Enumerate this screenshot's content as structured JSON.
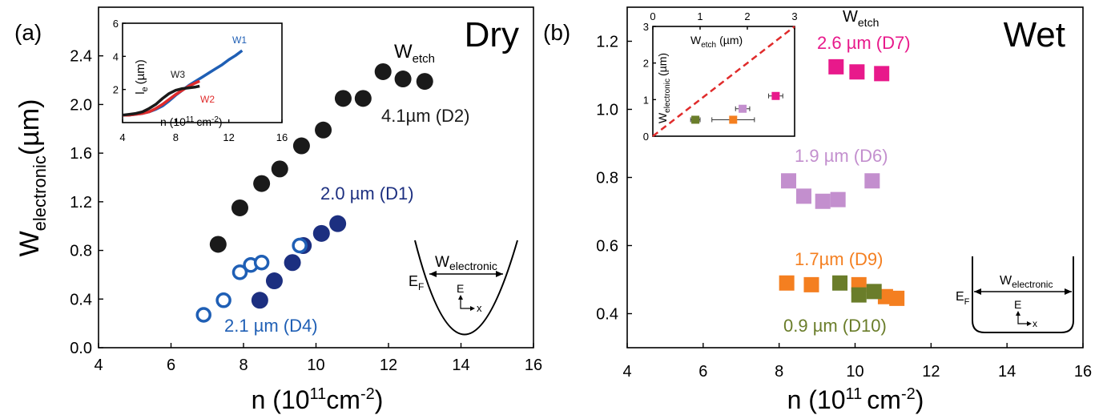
{
  "colors": {
    "black": "#1a1a1a",
    "navy": "#1c2f80",
    "blue": "#1f5fb5",
    "magenta": "#e8198b",
    "lavender": "#c38fce",
    "orange": "#f47f20",
    "olive": "#6a7d2a",
    "red": "#e02b2b"
  },
  "chart_data": [
    {
      "id": "left",
      "type": "scatter",
      "panel_label": "(a)",
      "title": "Dry",
      "xlabel_base": "n (10",
      "xlabel_sup": "11",
      "xlabel_unit": "cm",
      "xlabel_exp": "-2",
      "xlabel_close": ")",
      "ylabel_main": "W",
      "ylabel_sub": "electronic",
      "ylabel_unit": "(µm)",
      "xlim": [
        4,
        16
      ],
      "ylim": [
        0.0,
        2.8
      ],
      "xticks": [
        4,
        6,
        8,
        10,
        12,
        14,
        16
      ],
      "yticks": [
        "0.0",
        "0.4",
        "0.8",
        "1.2",
        "1.6",
        "2.0",
        "2.4"
      ],
      "wetch_label_main": "W",
      "wetch_label_sub": "etch",
      "series": [
        {
          "name": "4.1µm (D2)",
          "color": "#1a1a1a",
          "marker": "filled-circle",
          "x": [
            7.3,
            7.9,
            8.5,
            9.0,
            9.6,
            10.2,
            10.75,
            11.3,
            11.85,
            12.4,
            13.0
          ],
          "y": [
            0.85,
            1.15,
            1.35,
            1.47,
            1.66,
            1.79,
            2.05,
            2.05,
            2.27,
            2.21,
            2.19
          ]
        },
        {
          "name": "2.0 µm (D1)",
          "color": "#1c2f80",
          "marker": "filled-circle",
          "x": [
            8.45,
            8.85,
            9.35,
            9.65,
            10.15,
            10.6
          ],
          "y": [
            0.39,
            0.55,
            0.7,
            0.84,
            0.94,
            1.02
          ]
        },
        {
          "name": "2.1 µm (D4)",
          "color": "#1f5fb5",
          "marker": "open-circle",
          "x": [
            6.9,
            7.45,
            7.9,
            8.2,
            8.5,
            9.55
          ],
          "y": [
            0.27,
            0.39,
            0.62,
            0.68,
            0.7,
            0.84
          ]
        }
      ],
      "inset": {
        "ylabel_main": "l",
        "ylabel_sub": "e",
        "ylabel_unit": "(µm)",
        "xlabel": "n (10",
        "xlabel_sup": "11",
        "xlabel_unit": "cm",
        "xlabel_exp": "-2",
        "xlabel_close": ")",
        "xlim": [
          4,
          16
        ],
        "ylim": [
          0,
          6
        ],
        "xticks": [
          4,
          8,
          12,
          16
        ],
        "yticks": [
          2,
          4,
          6
        ],
        "series": [
          {
            "name": "W1",
            "color": "#1f5fb5",
            "x": [
              4,
              4.5,
              5.0,
              5.5,
              6.0,
              6.5,
              7.0,
              7.5,
              8.0,
              8.5,
              9.0,
              9.5,
              10.0,
              10.5,
              11.0,
              11.5,
              12.0,
              12.5,
              13.0
            ],
            "y": [
              0.45,
              0.45,
              0.5,
              0.55,
              0.65,
              0.8,
              1.0,
              1.3,
              1.65,
              1.95,
              2.25,
              2.5,
              2.75,
              3.0,
              3.25,
              3.5,
              3.8,
              4.05,
              4.35
            ]
          },
          {
            "name": "W2",
            "color": "#e02b2b",
            "x": [
              4,
              4.5,
              5.0,
              5.5,
              6.0,
              6.5,
              7.0,
              7.5,
              8.0,
              8.5,
              9.0,
              9.5,
              9.8
            ],
            "y": [
              0.45,
              0.45,
              0.5,
              0.55,
              0.65,
              0.85,
              1.1,
              1.4,
              1.7,
              1.95,
              2.2,
              2.4,
              2.5
            ]
          },
          {
            "name": "W3",
            "color": "#1a1a1a",
            "x": [
              4,
              4.5,
              5.0,
              5.5,
              6.0,
              6.5,
              7.0,
              7.5,
              8.0,
              8.5,
              9.0,
              9.5,
              9.8
            ],
            "y": [
              0.45,
              0.5,
              0.55,
              0.65,
              0.85,
              1.1,
              1.45,
              1.75,
              1.95,
              2.05,
              2.1,
              2.15,
              2.2
            ]
          }
        ]
      },
      "diagram": {
        "label_main": "W",
        "label_sub": "electronic",
        "ef_main": "E",
        "ef_sub": "F",
        "e": "E",
        "x": "x"
      }
    },
    {
      "id": "right",
      "type": "scatter",
      "panel_label": "(b)",
      "title": "Wet",
      "xlabel_base": "n (10",
      "xlabel_sup": "11",
      "xlabel_unit": "cm",
      "xlabel_exp": "-2",
      "xlabel_close": ")",
      "xlim": [
        4,
        16
      ],
      "ylim": [
        0.3,
        1.3
      ],
      "xticks": [
        4,
        6,
        8,
        10,
        12,
        14,
        16
      ],
      "yticks": [
        "0.4",
        "0.6",
        "0.8",
        "1.0",
        "1.2"
      ],
      "wetch_label_main": "W",
      "wetch_label_sub": "etch",
      "series": [
        {
          "name": "2.6 µm (D7)",
          "color": "#e8198b",
          "marker": "filled-square",
          "x": [
            9.5,
            10.05,
            10.7
          ],
          "y": [
            1.125,
            1.11,
            1.105
          ]
        },
        {
          "name": "1.9 µm (D6)",
          "color": "#c38fce",
          "marker": "filled-square",
          "x": [
            8.25,
            8.65,
            9.15,
            9.55,
            10.45
          ],
          "y": [
            0.79,
            0.745,
            0.73,
            0.735,
            0.79
          ]
        },
        {
          "name": "1.7µm (D9)",
          "color": "#f47f20",
          "marker": "filled-square",
          "x": [
            8.2,
            8.85,
            10.1,
            10.8,
            11.1
          ],
          "y": [
            0.49,
            0.485,
            0.485,
            0.45,
            0.445
          ]
        },
        {
          "name": "0.9 µm (D10)",
          "color": "#6a7d2a",
          "marker": "filled-square",
          "x": [
            9.6,
            10.1,
            10.5
          ],
          "y": [
            0.49,
            0.455,
            0.465
          ]
        }
      ],
      "inset": {
        "xlabel_main": "W",
        "xlabel_sub": "etch",
        "xlabel_unit": "(µm)",
        "ylabel_main": "W",
        "ylabel_sub": "electronic",
        "ylabel_unit": "(µm)",
        "xlim": [
          0,
          3
        ],
        "ylim": [
          0,
          3
        ],
        "xticks": [
          0,
          1,
          2,
          3
        ],
        "yticks": [
          0,
          1,
          2,
          3
        ],
        "points": [
          {
            "x": 0.9,
            "y": 0.45,
            "xerr": 0.1,
            "color": "#6a7d2a"
          },
          {
            "x": 1.7,
            "y": 0.45,
            "xerr": 0.45,
            "color": "#f47f20"
          },
          {
            "x": 1.9,
            "y": 0.75,
            "xerr": 0.15,
            "color": "#c38fce"
          },
          {
            "x": 2.6,
            "y": 1.1,
            "xerr": 0.15,
            "color": "#e8198b"
          }
        ],
        "reference_line": {
          "slope": 1,
          "color": "#e02b2b",
          "style": "dashed"
        }
      },
      "diagram": {
        "label_main": "W",
        "label_sub": "electronic",
        "ef_main": "E",
        "ef_sub": "F",
        "e": "E",
        "x": "x"
      }
    }
  ]
}
